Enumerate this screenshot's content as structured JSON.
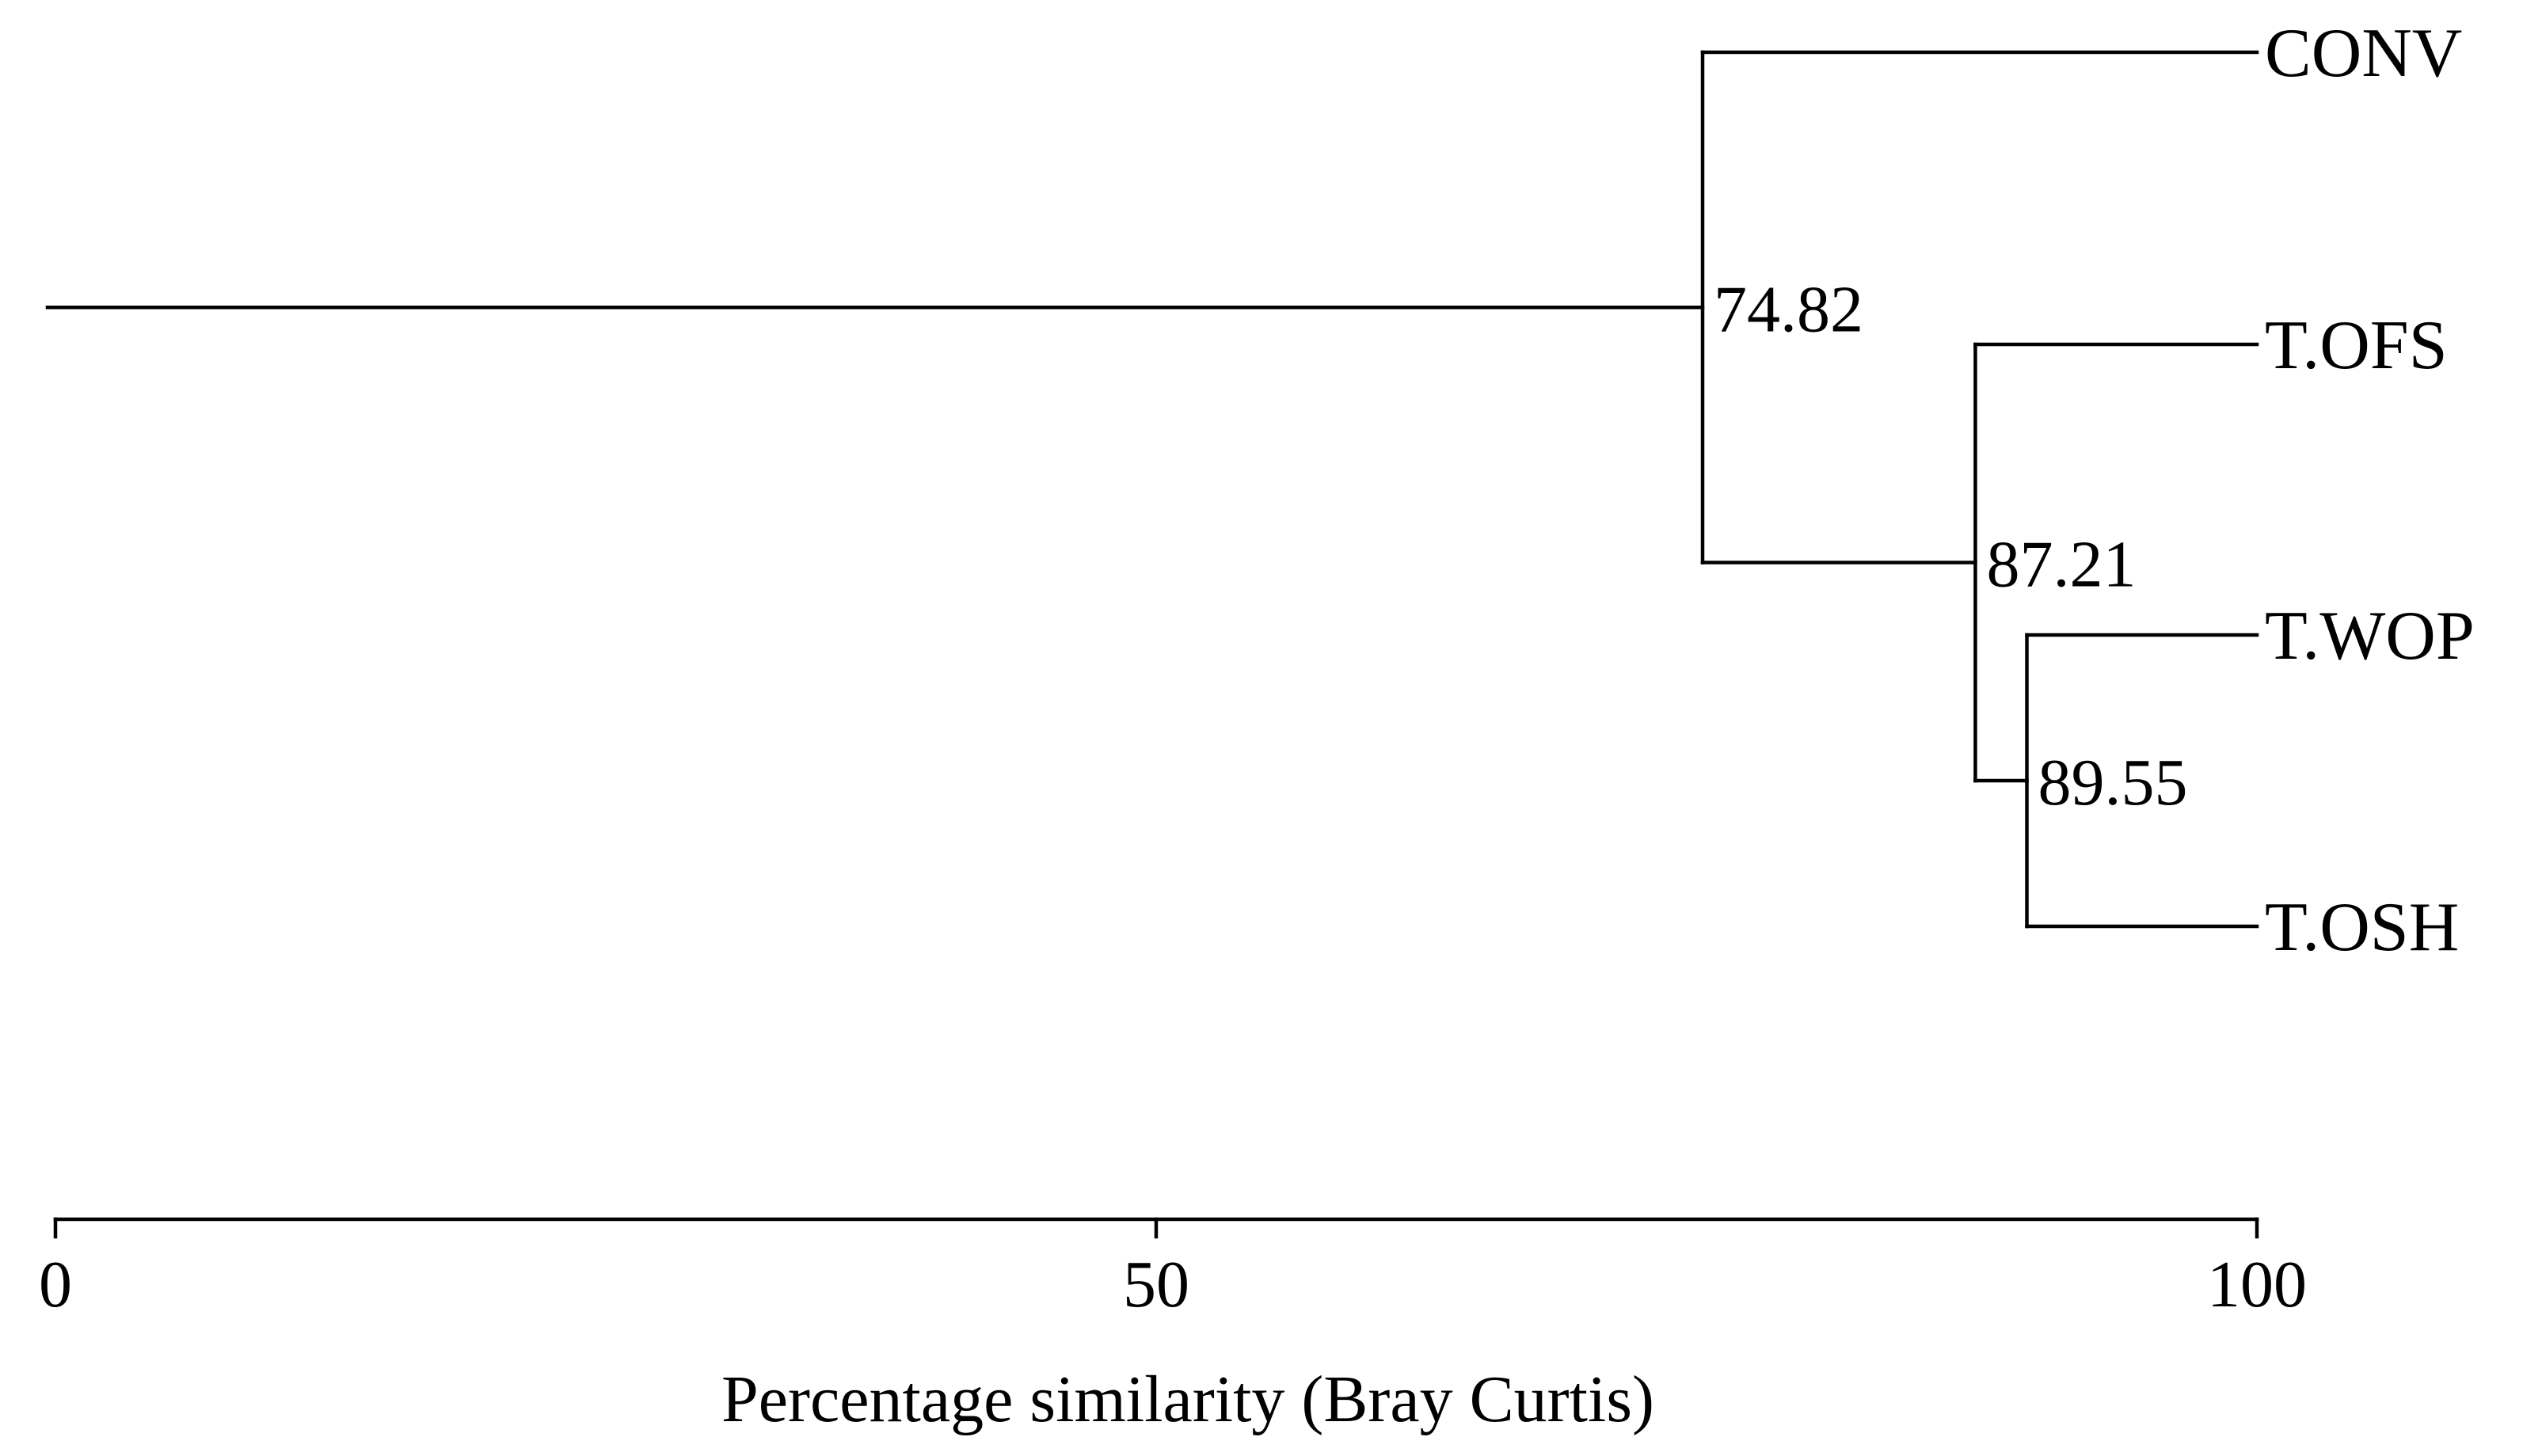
{
  "chart_data": {
    "type": "dendrogram",
    "title": "",
    "xlabel": "Percentage similarity (Bray Curtis)",
    "xlim": [
      0,
      100
    ],
    "ticks": [
      0,
      50,
      100
    ],
    "tick_labels": [
      "0",
      "50",
      "100"
    ],
    "grid": false,
    "leaves": [
      "CONV",
      "T.OFS",
      "T.WOP",
      "T.OSH"
    ],
    "clusters": [
      {
        "label": "89.55",
        "similarity": 89.55,
        "members": [
          "T.WOP",
          "T.OSH"
        ]
      },
      {
        "label": "87.21",
        "similarity": 87.21,
        "members": [
          "T.OFS",
          "T.WOP",
          "T.OSH"
        ]
      },
      {
        "label": "74.82",
        "similarity": 74.82,
        "members": [
          "CONV",
          "T.OFS",
          "T.WOP",
          "T.OSH"
        ]
      }
    ],
    "colors": {
      "line": "#000000",
      "text": "#000000",
      "background": "#ffffff"
    }
  }
}
